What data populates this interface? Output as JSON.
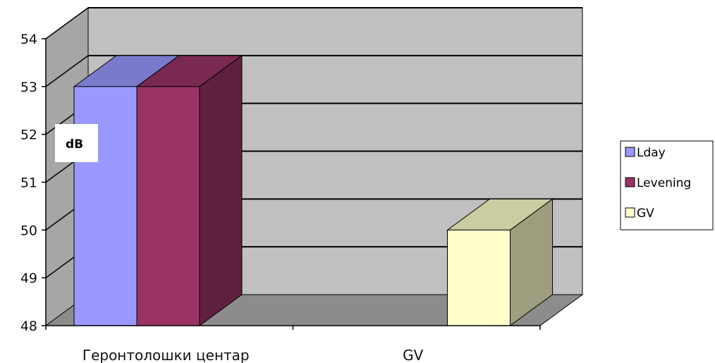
{
  "chart_data": {
    "type": "bar",
    "subtype": "3d-clustered",
    "categories": [
      "Геронтолошки центар",
      "GV"
    ],
    "series": [
      {
        "name": "Lday",
        "values": [
          53,
          null
        ],
        "color": "#9999ff"
      },
      {
        "name": "Levening",
        "values": [
          53,
          null
        ],
        "color": "#993366"
      },
      {
        "name": "GV",
        "values": [
          null,
          50
        ],
        "color": "#ffffcc"
      }
    ],
    "ylim": [
      48,
      54
    ],
    "yticks": [
      48,
      49,
      50,
      51,
      52,
      53,
      54
    ],
    "unit_label": "dB",
    "grid": true,
    "legend_position": "right",
    "colors": {
      "wall": "#c0c0c0",
      "floor": "#8c8c8c",
      "side_wall": "#a6a6a6"
    }
  }
}
